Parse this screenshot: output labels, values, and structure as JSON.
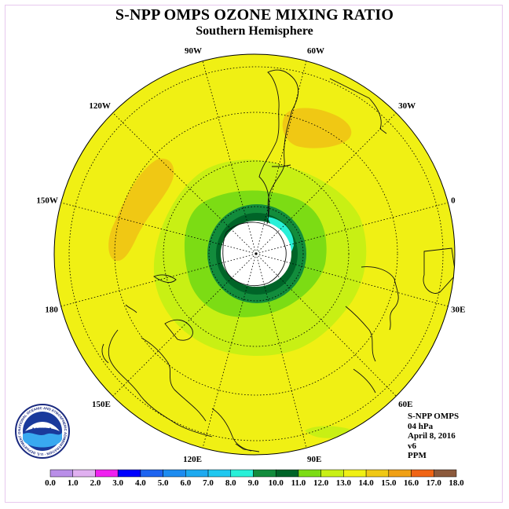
{
  "title": "S-NPP OMPS OZONE MIXING RATIO",
  "subtitle": "Southern Hemisphere",
  "longitude_labels": [
    {
      "text": "90W",
      "deg": -90
    },
    {
      "text": "60W",
      "deg": -60
    },
    {
      "text": "30W",
      "deg": -30
    },
    {
      "text": "0",
      "deg": 0
    },
    {
      "text": "30E",
      "deg": 30
    },
    {
      "text": "60E",
      "deg": 60
    },
    {
      "text": "90E",
      "deg": 90
    },
    {
      "text": "120E",
      "deg": 120
    },
    {
      "text": "150E",
      "deg": 150
    },
    {
      "text": "180",
      "deg": 180
    },
    {
      "text": "150W",
      "deg": -150
    },
    {
      "text": "120W",
      "deg": -120
    }
  ],
  "info": {
    "product": "S-NPP OMPS",
    "level": "04 hPa",
    "date": "April 8, 2016",
    "version": "v6",
    "units": "PPM"
  },
  "logo": {
    "text": "NOAA",
    "ring_text": "NATIONAL OCEANIC AND ATMOSPHERIC ADMINISTRATION · U.S. DEPARTMENT OF COMMERCE"
  },
  "colorbar": {
    "labels": [
      "0.0",
      "1.0",
      "2.0",
      "3.0",
      "4.0",
      "5.0",
      "6.0",
      "7.0",
      "8.0",
      "9.0",
      "10.0",
      "11.0",
      "12.0",
      "13.0",
      "14.0",
      "15.0",
      "16.0",
      "17.0",
      "18.0"
    ],
    "colors": [
      "#b98ee8",
      "#e0b0f0",
      "#f020f0",
      "#0000ff",
      "#1e64f0",
      "#1e8cf0",
      "#1eaaf0",
      "#20c8f0",
      "#28f0d8",
      "#128c3c",
      "#006428",
      "#7cdc14",
      "#c8f014",
      "#f0f014",
      "#f0c814",
      "#f0a014",
      "#f06414",
      "#f00000",
      "#8c5a3c"
    ]
  },
  "map_colors": {
    "yellow": "#f0f014",
    "orange": "#f0c814",
    "lime": "#c8f014",
    "green": "#7cdc14",
    "darkgreen1": "#128c3c",
    "darkgreen2": "#006428",
    "cyan": "#28f0d8",
    "center": "#ffffff"
  }
}
